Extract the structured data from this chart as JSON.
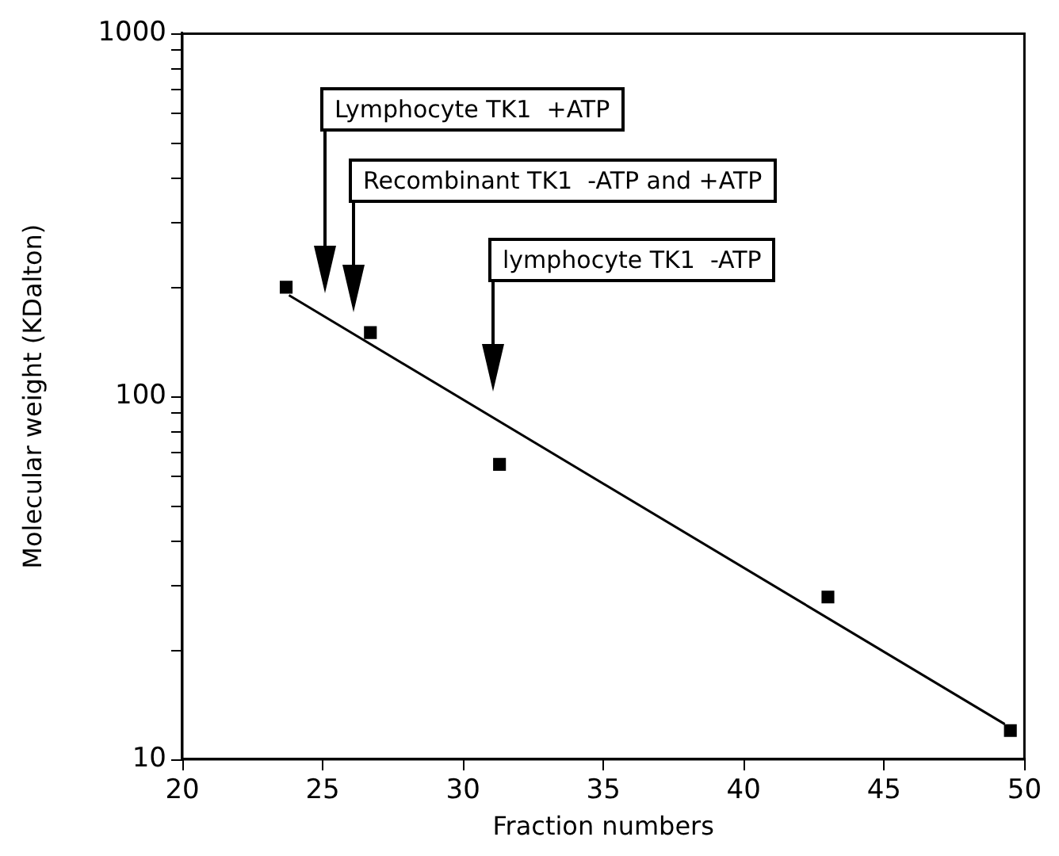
{
  "chart_data": {
    "type": "scatter",
    "xlabel": "Fraction numbers",
    "ylabel": "Molecular weight (KDalton)",
    "log": "y",
    "grid": false,
    "legend": false,
    "marker": "square",
    "xlim": [
      20,
      50
    ],
    "xticks": [
      20,
      25,
      30,
      35,
      40,
      45,
      50
    ],
    "ylim": [
      10,
      1000
    ],
    "yticks": [
      10,
      {
        "value": 20,
        "label": null
      },
      {
        "value": 30,
        "label": null
      },
      {
        "value": 40,
        "label": null
      },
      {
        "value": 50,
        "label": null
      },
      {
        "value": 60,
        "label": null
      },
      {
        "value": 70,
        "label": null
      },
      {
        "value": 80,
        "label": null
      },
      {
        "value": 90,
        "label": null
      },
      100,
      {
        "value": 200,
        "label": null
      },
      {
        "value": 300,
        "label": null
      },
      {
        "value": 400,
        "label": null
      },
      {
        "value": 500,
        "label": null
      },
      {
        "value": 600,
        "label": null
      },
      {
        "value": 700,
        "label": null
      },
      {
        "value": 800,
        "label": null
      },
      {
        "value": 900,
        "label": null
      },
      1000
    ],
    "series": [
      {
        "type": "scatter",
        "color": "#000000",
        "x": [
          23.7,
          26.7,
          31.3,
          43,
          49.5
        ],
        "values": [
          200,
          150,
          65,
          28,
          12
        ]
      },
      {
        "type": "line",
        "color": "#000000",
        "marker": "none",
        "line_style": "solid",
        "x": [
          23.8,
          49.3
        ],
        "values": [
          190,
          12.5
        ]
      }
    ],
    "annotations": [
      "Lymphocyte TK1  +ATP",
      "Recombinant TK1  -ATP and +ATP",
      "lymphocyte TK1  -ATP"
    ]
  }
}
